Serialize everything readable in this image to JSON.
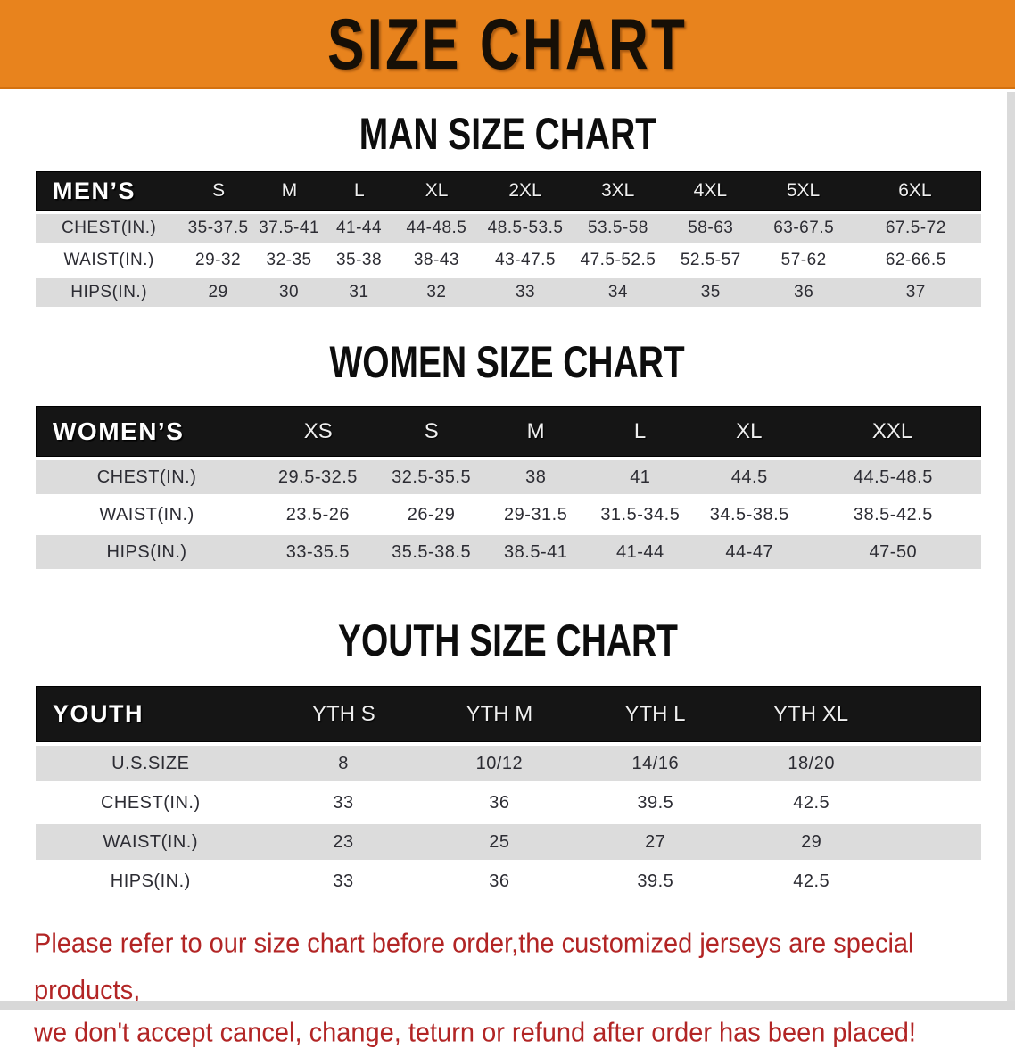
{
  "banner": {
    "title": "SIZE CHART"
  },
  "sections": [
    {
      "heading": "MAN SIZE CHART",
      "group_label": "MEN’S",
      "columns": [
        "S",
        "M",
        "L",
        "XL",
        "2XL",
        "3XL",
        "4XL",
        "5XL",
        "6XL"
      ],
      "rows": [
        {
          "label": "CHEST(IN.)",
          "values": [
            "35-37.5",
            "37.5-41",
            "41-44",
            "44-48.5",
            "48.5-53.5",
            "53.5-58",
            "58-63",
            "63-67.5",
            "67.5-72"
          ]
        },
        {
          "label": "WAIST(IN.)",
          "values": [
            "29-32",
            "32-35",
            "35-38",
            "38-43",
            "43-47.5",
            "47.5-52.5",
            "52.5-57",
            "57-62",
            "62-66.5"
          ]
        },
        {
          "label": "HIPS(IN.)",
          "values": [
            "29",
            "30",
            "31",
            "32",
            "33",
            "34",
            "35",
            "36",
            "37"
          ]
        }
      ]
    },
    {
      "heading": "WOMEN SIZE CHART",
      "group_label": "WOMEN’S",
      "columns": [
        "XS",
        "S",
        "M",
        "L",
        "XL",
        "XXL"
      ],
      "rows": [
        {
          "label": "CHEST(IN.)",
          "values": [
            "29.5-32.5",
            "32.5-35.5",
            "38",
            "41",
            "44.5",
            "44.5-48.5"
          ]
        },
        {
          "label": "WAIST(IN.)",
          "values": [
            "23.5-26",
            "26-29",
            "29-31.5",
            "31.5-34.5",
            "34.5-38.5",
            "38.5-42.5"
          ]
        },
        {
          "label": "HIPS(IN.)",
          "values": [
            "33-35.5",
            "35.5-38.5",
            "38.5-41",
            "41-44",
            "44-47",
            "47-50"
          ]
        }
      ]
    },
    {
      "heading": "YOUTH SIZE CHART",
      "group_label": "YOUTH",
      "columns": [
        "YTH S",
        "YTH M",
        "YTH L",
        "YTH XL"
      ],
      "rows": [
        {
          "label": "U.S.SIZE",
          "values": [
            "8",
            "10/12",
            "14/16",
            "18/20"
          ]
        },
        {
          "label": "CHEST(IN.)",
          "values": [
            "33",
            "36",
            "39.5",
            "42.5"
          ]
        },
        {
          "label": "WAIST(IN.)",
          "values": [
            "23",
            "25",
            "27",
            "29"
          ]
        },
        {
          "label": "HIPS(IN.)",
          "values": [
            "33",
            "36",
            "39.5",
            "42.5"
          ]
        }
      ]
    }
  ],
  "disclaimer": {
    "line1": "Please refer to our size chart before order,the customized jerseys are special products,",
    "line2": "we don't accept cancel, change, teturn or refund after order has been placed!"
  },
  "colors": {
    "banner_orange": "#E8831D",
    "header_black": "#151515",
    "row_gray": "#DCDCDC",
    "disclaimer_red": "#B22525"
  }
}
